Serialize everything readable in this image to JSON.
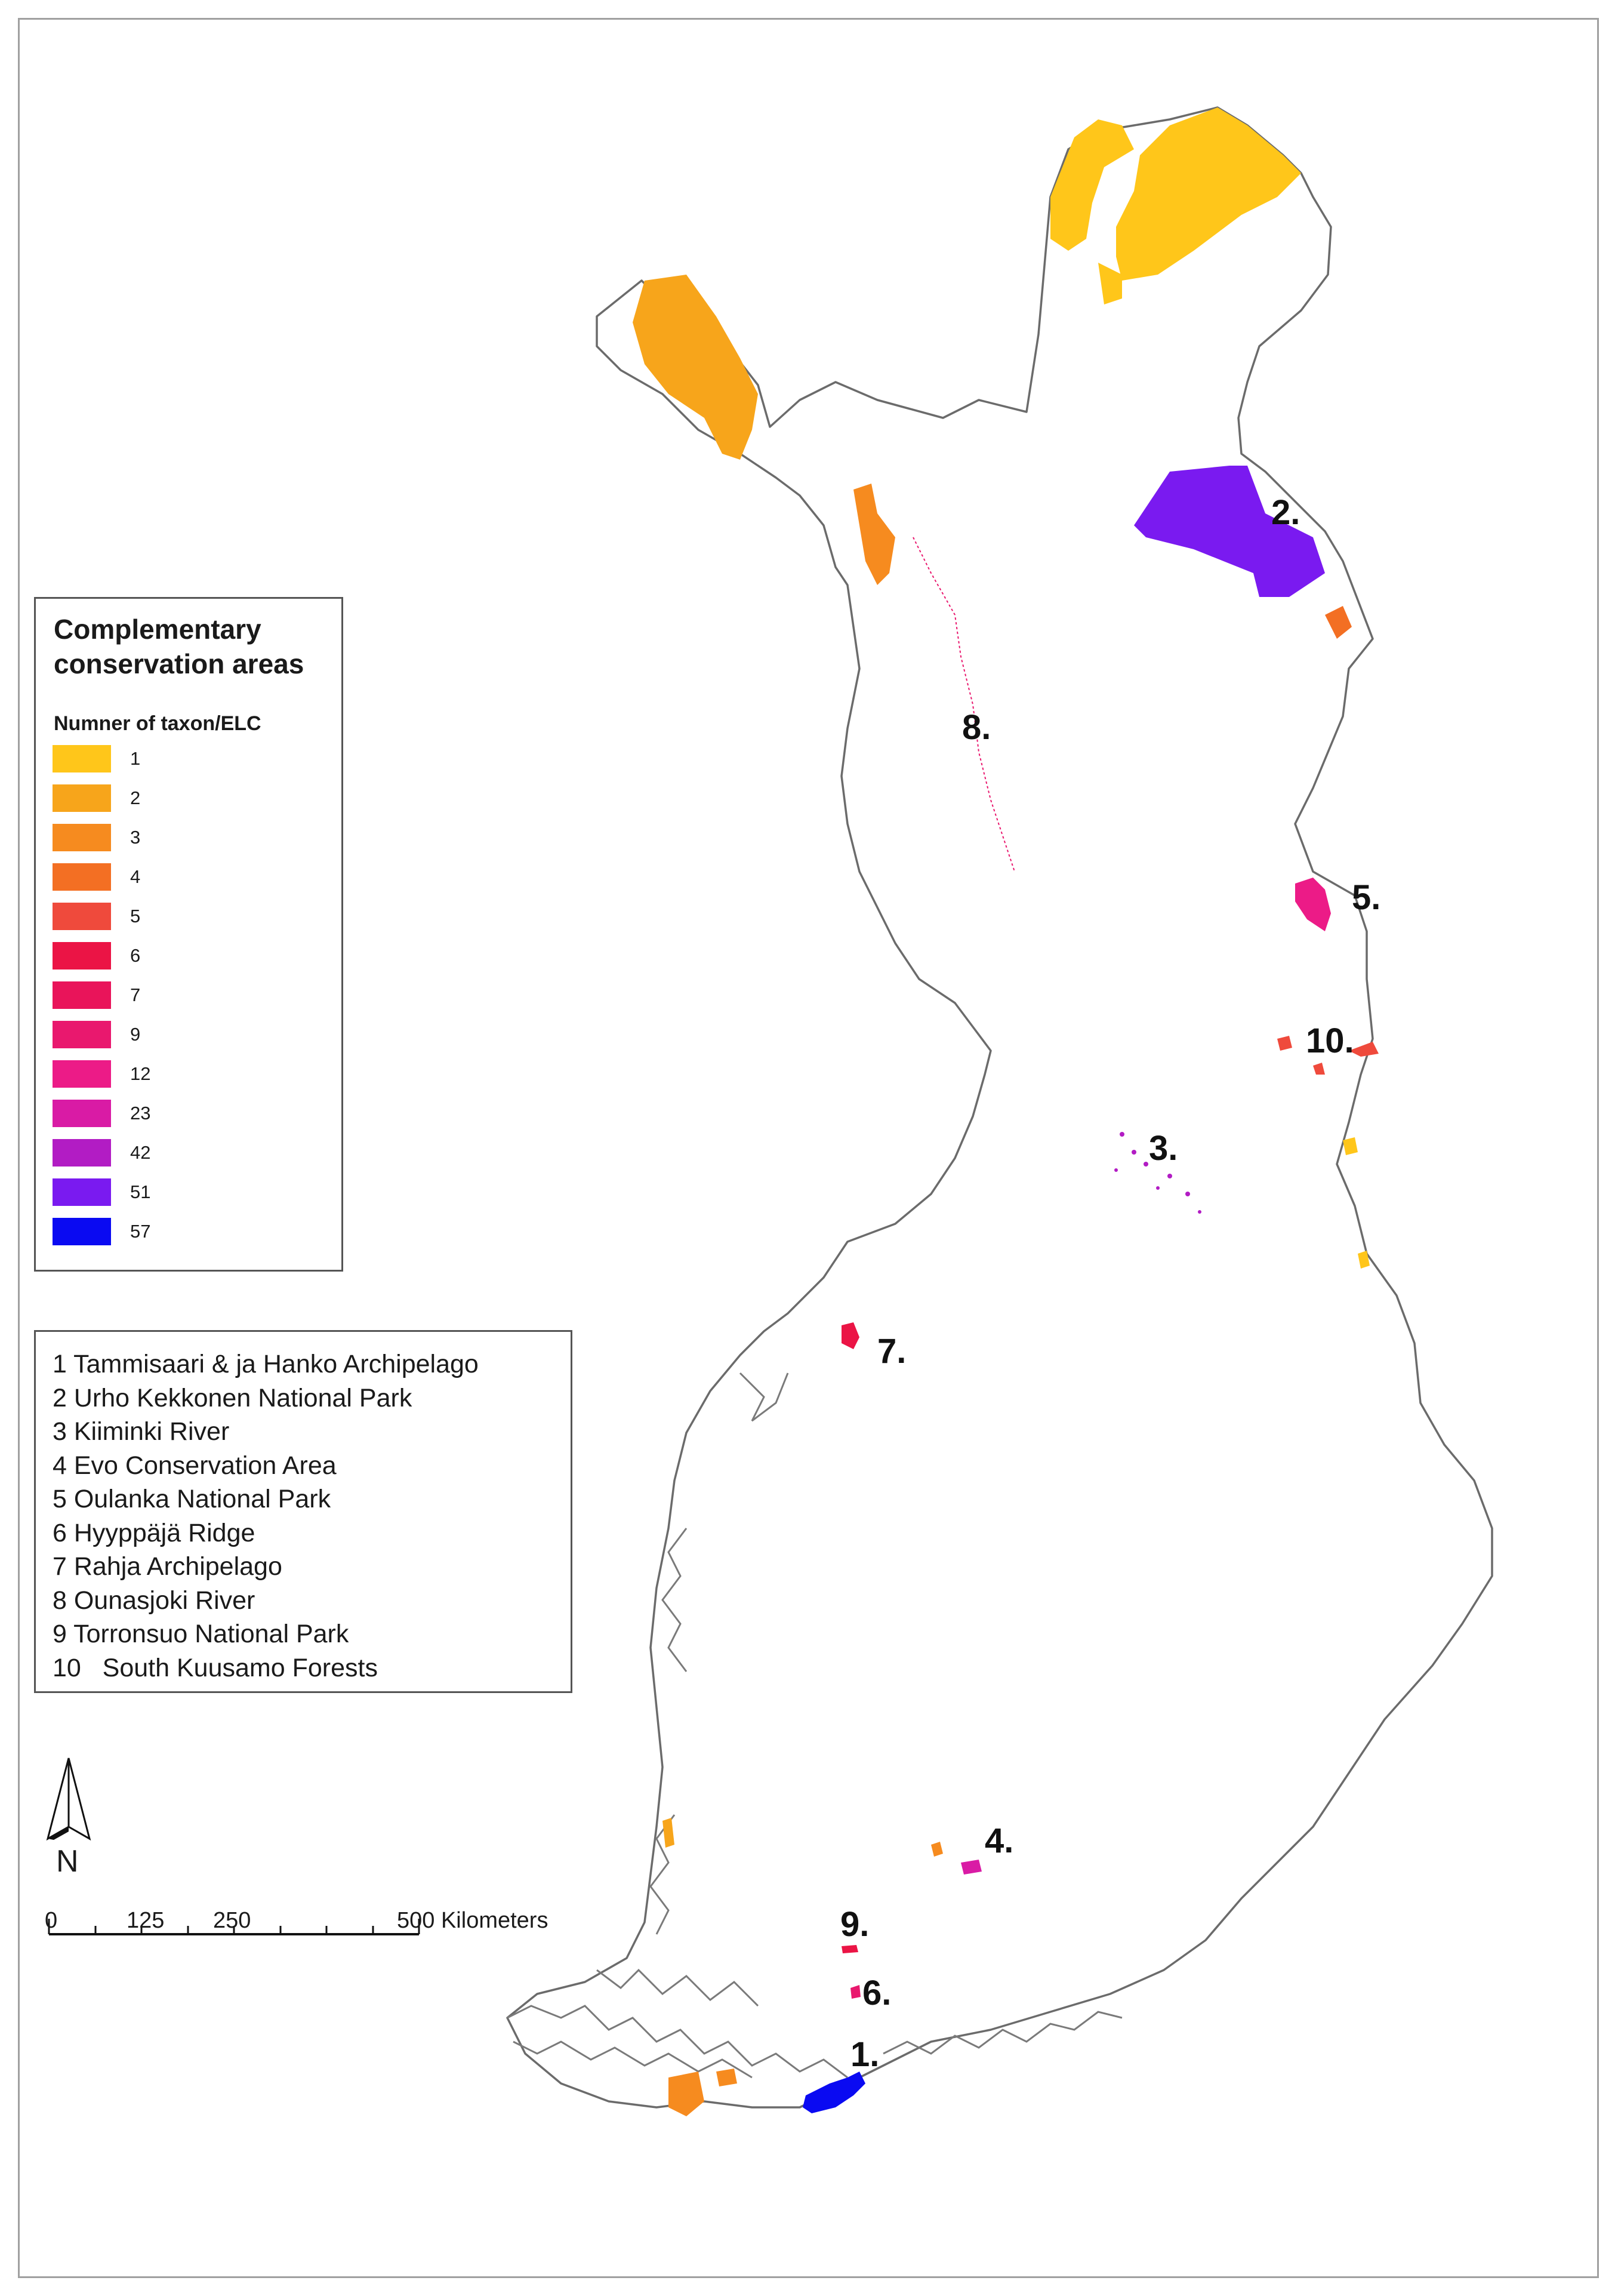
{
  "map": {
    "labels": [
      {
        "id": "2",
        "text": "2."
      },
      {
        "id": "8",
        "text": "8."
      },
      {
        "id": "5",
        "text": "5."
      },
      {
        "id": "10",
        "text": "10."
      },
      {
        "id": "3",
        "text": "3."
      },
      {
        "id": "7",
        "text": "7."
      },
      {
        "id": "4",
        "text": "4."
      },
      {
        "id": "9",
        "text": "9."
      },
      {
        "id": "6",
        "text": "6."
      },
      {
        "id": "1",
        "text": "1."
      }
    ]
  },
  "legend": {
    "title_line1": "Complementary",
    "title_line2": "conservation areas",
    "subtitle": "Numner of taxon/ELC",
    "classes": [
      {
        "value": "1",
        "color": "#FFC61A"
      },
      {
        "value": "2",
        "color": "#F7A51B"
      },
      {
        "value": "3",
        "color": "#F68B1F"
      },
      {
        "value": "4",
        "color": "#F36F23"
      },
      {
        "value": "5",
        "color": "#EF4A3C"
      },
      {
        "value": "6",
        "color": "#EB1445"
      },
      {
        "value": "7",
        "color": "#E9145A"
      },
      {
        "value": "9",
        "color": "#E9186E"
      },
      {
        "value": "12",
        "color": "#EC1B87"
      },
      {
        "value": "23",
        "color": "#D91BA5"
      },
      {
        "value": "42",
        "color": "#B21CC4"
      },
      {
        "value": "51",
        "color": "#7A1AF0"
      },
      {
        "value": "57",
        "color": "#0A0AF2"
      }
    ]
  },
  "area_names": [
    "1 Tammisaari & ja Hanko Archipelago",
    "2 Urho Kekkonen National Park",
    "3 Kiiminki River",
    "4 Evo Conservation Area",
    "5 Oulanka National Park",
    "6 Hyyppäjä Ridge",
    "7 Rahja Archipelago",
    "8 Ounasjoki River",
    "9 Torronsuo National Park",
    "10   South Kuusamo Forests"
  ],
  "north_arrow": {
    "label": "N"
  },
  "scale_bar": {
    "ticks": [
      "0",
      "125",
      "250",
      "500 Kilometers"
    ]
  },
  "colors": {
    "border_line": "#6b6b6b",
    "coast_line": "#7a7a7a"
  }
}
